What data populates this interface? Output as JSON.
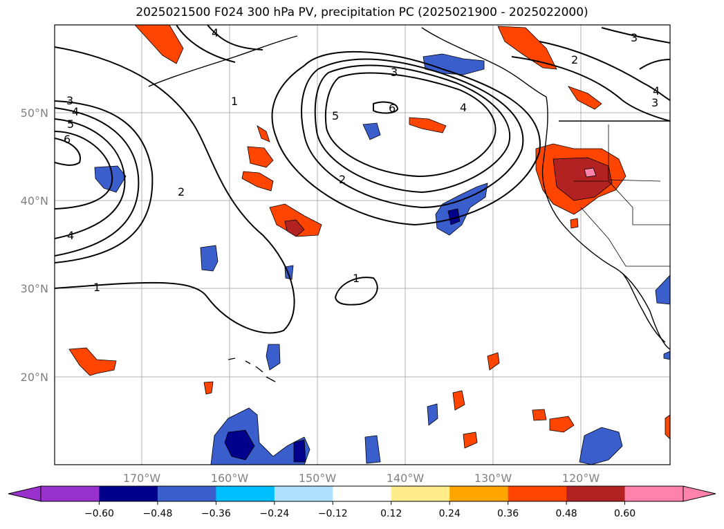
{
  "title": "2025021500 F024 300 hPa PV, precipitation PC (2025021900 - 2025022000)",
  "map": {
    "lat_labels": [
      "50°N",
      "40°N",
      "30°N",
      "20°N"
    ],
    "lon_labels": [
      "170°W",
      "160°W",
      "150°W",
      "140°W",
      "130°W",
      "120°W"
    ],
    "contour_labels": [
      "3",
      "4",
      "5",
      "6",
      "4",
      "2",
      "1",
      "1",
      "2",
      "3",
      "4",
      "5",
      "6",
      "2",
      "3",
      "4",
      "4",
      "1",
      "3"
    ],
    "colors": {
      "neg_extend": "#9a3fd0",
      "pos_extend": "#ff85b0",
      "grid": "#b0b0b0",
      "contour": "#000000"
    }
  },
  "colorbar": {
    "ticks": [
      "−0.60",
      "−0.48",
      "−0.36",
      "−0.24",
      "−0.12",
      "0.12",
      "0.24",
      "0.36",
      "0.48",
      "0.60"
    ],
    "levels": [
      -0.6,
      -0.48,
      -0.36,
      -0.24,
      -0.12,
      0.12,
      0.24,
      0.36,
      0.48,
      0.6
    ],
    "colors": [
      "#00008b",
      "#3a5fcd",
      "#00bfff",
      "#b0e2ff",
      "#ffffff",
      "#ffec8b",
      "#ffa500",
      "#ff4500",
      "#b22222",
      "#ff82ab"
    ],
    "extend_neg_color": "#9932cc",
    "extend_pos_color": "#ff82ab"
  }
}
